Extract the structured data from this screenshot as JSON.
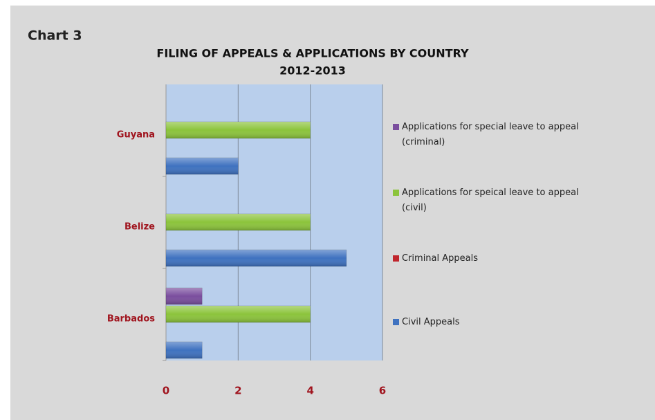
{
  "label": "Chart 3",
  "chart_data": {
    "type": "hbar",
    "title": "FILING OF APPEALS & APPLICATIONS BY COUNTRY",
    "subtitle": "2012-2013",
    "categories": [
      "Barbados",
      "Belize",
      "Guyana"
    ],
    "series": [
      {
        "name": "Civil Appeals",
        "color": "#3f72c0",
        "values": [
          1,
          5,
          2
        ]
      },
      {
        "name": "Criminal Appeals",
        "color": "#c0262d",
        "values": [
          0,
          0,
          0
        ]
      },
      {
        "name": "Applications for speical leave to appeal (civil)",
        "color": "#8cc43c",
        "values": [
          4,
          4,
          4
        ]
      },
      {
        "name": "Applications for special leave to appeal (criminal)",
        "color": "#7a4e9e",
        "values": [
          1,
          0,
          0
        ]
      }
    ],
    "xlim": [
      0,
      6
    ],
    "xticks": [
      0,
      2,
      4,
      6
    ],
    "grid": true,
    "legend": "right"
  }
}
